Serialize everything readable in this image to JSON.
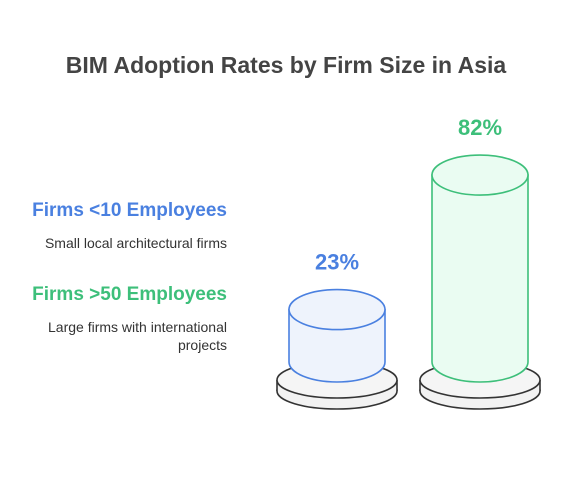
{
  "chart_data": {
    "type": "bar",
    "title": "BIM Adoption Rates by Firm Size in Asia",
    "categories": [
      "Firms <10 Employees",
      "Firms >50 Employees"
    ],
    "descriptions": [
      "Small local architectural firms",
      "Large firms with international projects"
    ],
    "values": [
      23,
      82
    ],
    "value_labels": [
      "23%",
      "82%"
    ],
    "ylim": [
      0,
      100
    ],
    "colors": [
      "#4a80e0",
      "#3dbf7a"
    ],
    "fills": [
      "#eef3fc",
      "#eafcf2"
    ]
  }
}
